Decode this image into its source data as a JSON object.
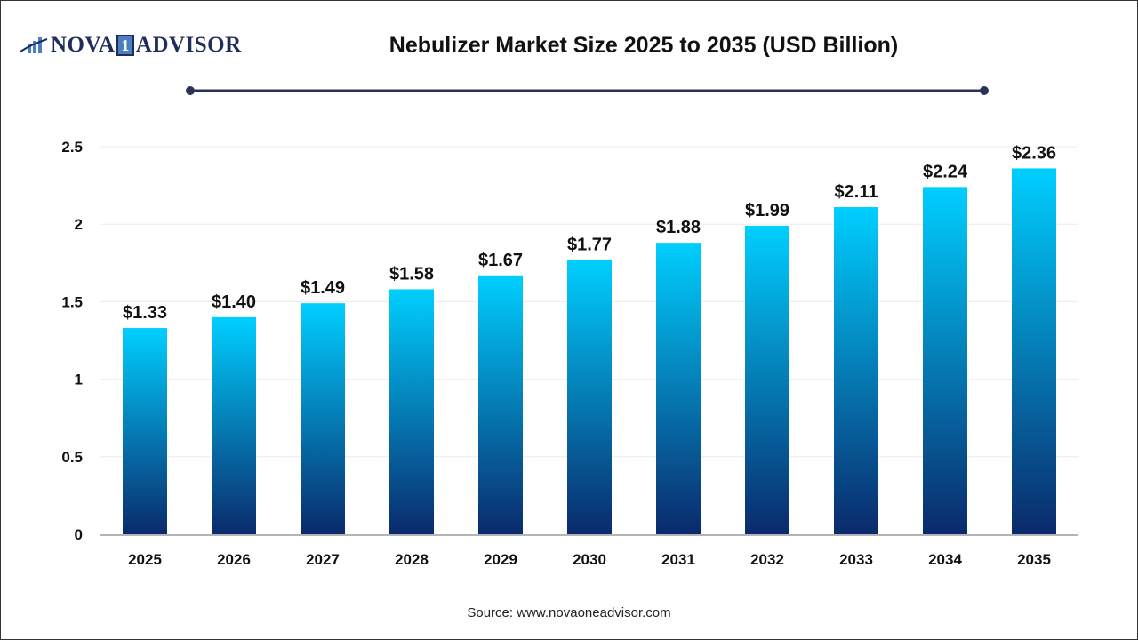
{
  "logo": {
    "text_left": "NOVA",
    "text_mid": "1",
    "text_right": "ADVISOR"
  },
  "title": "Nebulizer Market Size 2025 to 2035 (USD Billion)",
  "source": "Source: www.novaoneadvisor.com",
  "colors": {
    "bar_top": "#00cfff",
    "bar_bottom": "#0a2a6b",
    "title_rule": "#2b3257"
  },
  "chart_data": {
    "type": "bar",
    "title": "Nebulizer Market Size 2025 to 2035 (USD Billion)",
    "categories": [
      "2025",
      "2026",
      "2027",
      "2028",
      "2029",
      "2030",
      "2031",
      "2032",
      "2033",
      "2034",
      "2035"
    ],
    "values": [
      1.33,
      1.4,
      1.49,
      1.58,
      1.67,
      1.77,
      1.88,
      1.99,
      2.11,
      2.24,
      2.36
    ],
    "data_labels": [
      "$1.33",
      "$1.40",
      "$1.49",
      "$1.58",
      "$1.67",
      "$1.77",
      "$1.88",
      "$1.99",
      "$2.11",
      "$2.24",
      "$2.36"
    ],
    "yticks": [
      "0",
      "0.5",
      "1",
      "1.5",
      "2",
      "2.5"
    ],
    "ylim": [
      0,
      2.5
    ],
    "grid": true,
    "xlabel": "",
    "ylabel": ""
  }
}
